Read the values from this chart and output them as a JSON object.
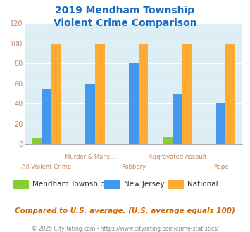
{
  "title_line1": "2019 Mendham Township",
  "title_line2": "Violent Crime Comparison",
  "title_color": "#1a6abf",
  "categories": [
    "All Violent Crime",
    "Murder & Mans...",
    "Robbery",
    "Aggravated Assault",
    "Rape"
  ],
  "mendham": [
    5,
    0,
    0,
    7,
    0
  ],
  "nj": [
    55,
    60,
    80,
    50,
    41
  ],
  "national": [
    100,
    100,
    100,
    100,
    100
  ],
  "mendham_color": "#88cc33",
  "nj_color": "#4499ee",
  "national_color": "#ffaa33",
  "plot_bg": "#ddeef5",
  "ylim": [
    0,
    120
  ],
  "yticks": [
    0,
    20,
    40,
    60,
    80,
    100,
    120
  ],
  "bar_width": 0.22,
  "legend_labels": [
    "Mendham Township",
    "New Jersey",
    "National"
  ],
  "footer_text": "Compared to U.S. average. (U.S. average equals 100)",
  "footer_color": "#cc6600",
  "credit_text": "© 2025 CityRating.com - https://www.cityrating.com/crime-statistics/",
  "credit_color": "#888888",
  "grid_color": "#ffffff",
  "tick_color": "#bb8866",
  "spine_color": "#aaaaaa"
}
